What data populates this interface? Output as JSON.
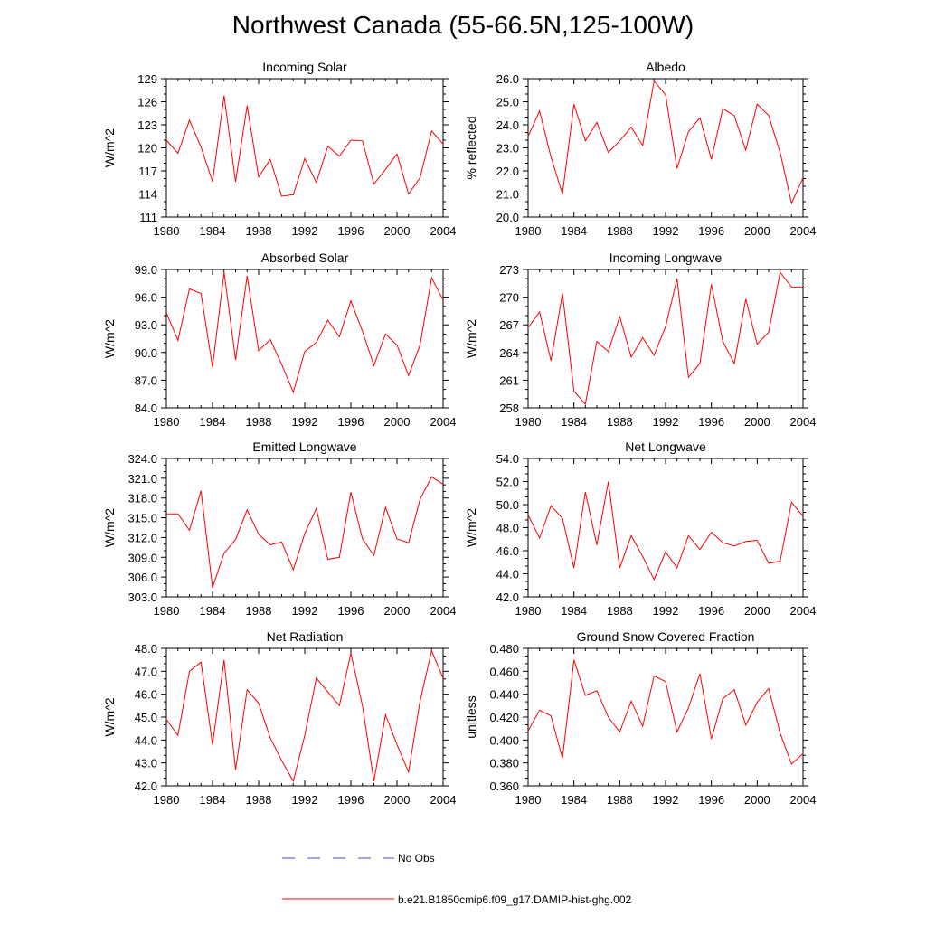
{
  "figure": {
    "title": "Northwest Canada (55-66.5N,125-100W)"
  },
  "colors": {
    "series": "#ff0000",
    "no_obs": "#4444cc",
    "axis": "#000000"
  },
  "legend": {
    "no_obs_label": "No Obs",
    "model_label": "b.e21.B1850cmip6.f09_g17.DAMIP-hist-ghg.002"
  },
  "chart_data": [
    {
      "type": "line",
      "title": "Incoming Solar",
      "ylabel": "W/m^2",
      "xlim": [
        1980,
        2004
      ],
      "ylim": [
        111,
        129
      ],
      "xticks": [
        "1980",
        "1984",
        "1988",
        "1992",
        "1996",
        "2000",
        "2004"
      ],
      "yticks": [
        "111",
        "114",
        "117",
        "120",
        "123",
        "126",
        "129"
      ],
      "series": [
        {
          "x": [
            1980,
            1981,
            1982,
            1983,
            1984,
            1985,
            1986,
            1987,
            1988,
            1989,
            1990,
            1991,
            1992,
            1993,
            1994,
            1995,
            1996,
            1997,
            1998,
            1999,
            2000,
            2001,
            2002,
            2003,
            2004
          ],
          "values": [
            121.0,
            119.3,
            123.6,
            120.1,
            115.6,
            126.8,
            115.6,
            125.5,
            116.2,
            118.5,
            113.7,
            113.9,
            118.6,
            115.5,
            120.2,
            118.9,
            121.0,
            120.9,
            115.3,
            117.2,
            119.2,
            114.0,
            116.1,
            122.2,
            120.5
          ]
        }
      ]
    },
    {
      "type": "line",
      "title": "Albedo",
      "ylabel": "% reflected",
      "xlim": [
        1980,
        2004
      ],
      "ylim": [
        20.0,
        26.0
      ],
      "xticks": [
        "1980",
        "1984",
        "1988",
        "1992",
        "1996",
        "2000",
        "2004"
      ],
      "yticks": [
        "20.0",
        "21.0",
        "22.0",
        "23.0",
        "24.0",
        "25.0",
        "26.0"
      ],
      "series": [
        {
          "x": [
            1980,
            1981,
            1982,
            1983,
            1984,
            1985,
            1986,
            1987,
            1988,
            1989,
            1990,
            1991,
            1992,
            1993,
            1994,
            1995,
            1996,
            1997,
            1998,
            1999,
            2000,
            2001,
            2002,
            2003,
            2004
          ],
          "values": [
            23.5,
            24.6,
            22.6,
            21.0,
            24.9,
            23.3,
            24.1,
            22.8,
            23.3,
            23.9,
            23.1,
            25.9,
            25.3,
            22.1,
            23.7,
            24.3,
            22.5,
            24.7,
            24.4,
            22.9,
            24.9,
            24.4,
            22.8,
            20.6,
            21.7
          ]
        }
      ]
    },
    {
      "type": "line",
      "title": "Absorbed Solar",
      "ylabel": "W/m^2",
      "xlim": [
        1980,
        2004
      ],
      "ylim": [
        84.0,
        99.0
      ],
      "xticks": [
        "1980",
        "1984",
        "1988",
        "1992",
        "1996",
        "2000",
        "2004"
      ],
      "yticks": [
        "84.0",
        "87.0",
        "90.0",
        "93.0",
        "96.0",
        "99.0"
      ],
      "series": [
        {
          "x": [
            1980,
            1981,
            1982,
            1983,
            1984,
            1985,
            1986,
            1987,
            1988,
            1989,
            1990,
            1991,
            1992,
            1993,
            1994,
            1995,
            1996,
            1997,
            1998,
            1999,
            2000,
            2001,
            2002,
            2003,
            2004
          ],
          "values": [
            94.3,
            91.3,
            96.9,
            96.4,
            88.4,
            98.7,
            89.2,
            98.3,
            90.2,
            91.4,
            88.7,
            85.7,
            90.1,
            91.1,
            93.5,
            91.7,
            95.6,
            92.3,
            88.6,
            92.0,
            90.8,
            87.5,
            90.8,
            98.1,
            95.7
          ]
        }
      ]
    },
    {
      "type": "line",
      "title": "Incoming Longwave",
      "ylabel": "W/m^2",
      "xlim": [
        1980,
        2004
      ],
      "ylim": [
        258,
        273
      ],
      "xticks": [
        "1980",
        "1984",
        "1988",
        "1992",
        "1996",
        "2000",
        "2004"
      ],
      "yticks": [
        "258",
        "261",
        "264",
        "267",
        "270",
        "273"
      ],
      "series": [
        {
          "x": [
            1980,
            1981,
            1982,
            1983,
            1984,
            1985,
            1986,
            1987,
            1988,
            1989,
            1990,
            1991,
            1992,
            1993,
            1994,
            1995,
            1996,
            1997,
            1998,
            1999,
            2000,
            2001,
            2002,
            2003,
            2004
          ],
          "values": [
            266.7,
            268.4,
            263.1,
            270.4,
            259.8,
            258.4,
            265.2,
            264.1,
            267.9,
            263.5,
            265.6,
            263.7,
            266.8,
            272.0,
            261.3,
            262.8,
            271.4,
            265.2,
            262.8,
            269.8,
            264.9,
            266.2,
            272.7,
            271.1,
            271.1
          ]
        }
      ]
    },
    {
      "type": "line",
      "title": "Emitted Longwave",
      "ylabel": "W/m^2",
      "xlim": [
        1980,
        2004
      ],
      "ylim": [
        303.0,
        324.0
      ],
      "xticks": [
        "1980",
        "1984",
        "1988",
        "1992",
        "1996",
        "2000",
        "2004"
      ],
      "yticks": [
        "303.0",
        "306.0",
        "309.0",
        "312.0",
        "315.0",
        "318.0",
        "321.0",
        "324.0"
      ],
      "series": [
        {
          "x": [
            1980,
            1981,
            1982,
            1983,
            1984,
            1985,
            1986,
            1987,
            1988,
            1989,
            1990,
            1991,
            1992,
            1993,
            1994,
            1995,
            1996,
            1997,
            1998,
            1999,
            2000,
            2001,
            2002,
            2003,
            2004
          ],
          "values": [
            315.6,
            315.6,
            313.1,
            319.1,
            304.4,
            309.6,
            311.7,
            316.2,
            312.5,
            310.9,
            311.3,
            307.1,
            312.6,
            316.4,
            308.7,
            309.0,
            318.9,
            311.8,
            309.3,
            316.6,
            311.8,
            311.2,
            317.8,
            321.2,
            320.1
          ]
        }
      ]
    },
    {
      "type": "line",
      "title": "Net Longwave",
      "ylabel": "W/m^2",
      "xlim": [
        1980,
        2004
      ],
      "ylim": [
        42.0,
        54.0
      ],
      "xticks": [
        "1980",
        "1984",
        "1988",
        "1992",
        "1996",
        "2000",
        "2004"
      ],
      "yticks": [
        "42.0",
        "44.0",
        "46.0",
        "48.0",
        "50.0",
        "52.0",
        "54.0"
      ],
      "series": [
        {
          "x": [
            1980,
            1981,
            1982,
            1983,
            1984,
            1985,
            1986,
            1987,
            1988,
            1989,
            1990,
            1991,
            1992,
            1993,
            1994,
            1995,
            1996,
            1997,
            1998,
            1999,
            2000,
            2001,
            2002,
            2003,
            2004
          ],
          "values": [
            49.1,
            47.1,
            49.9,
            48.8,
            44.5,
            51.1,
            46.5,
            52.0,
            44.5,
            47.3,
            45.5,
            43.5,
            45.9,
            44.5,
            47.3,
            46.1,
            47.6,
            46.7,
            46.4,
            46.8,
            46.9,
            44.9,
            45.1,
            50.2,
            49.0
          ]
        }
      ]
    },
    {
      "type": "line",
      "title": "Net Radiation",
      "ylabel": "W/m^2",
      "xlim": [
        1980,
        2004
      ],
      "ylim": [
        42.0,
        48.0
      ],
      "xticks": [
        "1980",
        "1984",
        "1988",
        "1992",
        "1996",
        "2000",
        "2004"
      ],
      "yticks": [
        "42.0",
        "43.0",
        "44.0",
        "45.0",
        "46.0",
        "47.0",
        "48.0"
      ],
      "series": [
        {
          "x": [
            1980,
            1981,
            1982,
            1983,
            1984,
            1985,
            1986,
            1987,
            1988,
            1989,
            1990,
            1991,
            1992,
            1993,
            1994,
            1995,
            1996,
            1997,
            1998,
            1999,
            2000,
            2001,
            2002,
            2003,
            2004
          ],
          "values": [
            44.9,
            44.2,
            47.0,
            47.4,
            43.8,
            47.5,
            42.7,
            46.2,
            45.6,
            44.1,
            43.1,
            42.2,
            44.2,
            46.7,
            46.1,
            45.5,
            47.8,
            45.5,
            42.2,
            45.1,
            43.8,
            42.6,
            45.7,
            47.9,
            46.7
          ]
        }
      ]
    },
    {
      "type": "line",
      "title": "Ground Snow Covered Fraction",
      "ylabel": "unitless",
      "xlim": [
        1980,
        2004
      ],
      "ylim": [
        0.36,
        0.48
      ],
      "xticks": [
        "1980",
        "1984",
        "1988",
        "1992",
        "1996",
        "2000",
        "2004"
      ],
      "yticks": [
        "0.360",
        "0.380",
        "0.400",
        "0.420",
        "0.440",
        "0.460",
        "0.480"
      ],
      "series": [
        {
          "x": [
            1980,
            1981,
            1982,
            1983,
            1984,
            1985,
            1986,
            1987,
            1988,
            1989,
            1990,
            1991,
            1992,
            1993,
            1994,
            1995,
            1996,
            1997,
            1998,
            1999,
            2000,
            2001,
            2002,
            2003,
            2004
          ],
          "values": [
            0.408,
            0.426,
            0.421,
            0.384,
            0.47,
            0.439,
            0.443,
            0.42,
            0.407,
            0.434,
            0.412,
            0.456,
            0.451,
            0.407,
            0.428,
            0.458,
            0.401,
            0.436,
            0.444,
            0.413,
            0.433,
            0.445,
            0.406,
            0.379,
            0.388
          ]
        }
      ]
    }
  ]
}
